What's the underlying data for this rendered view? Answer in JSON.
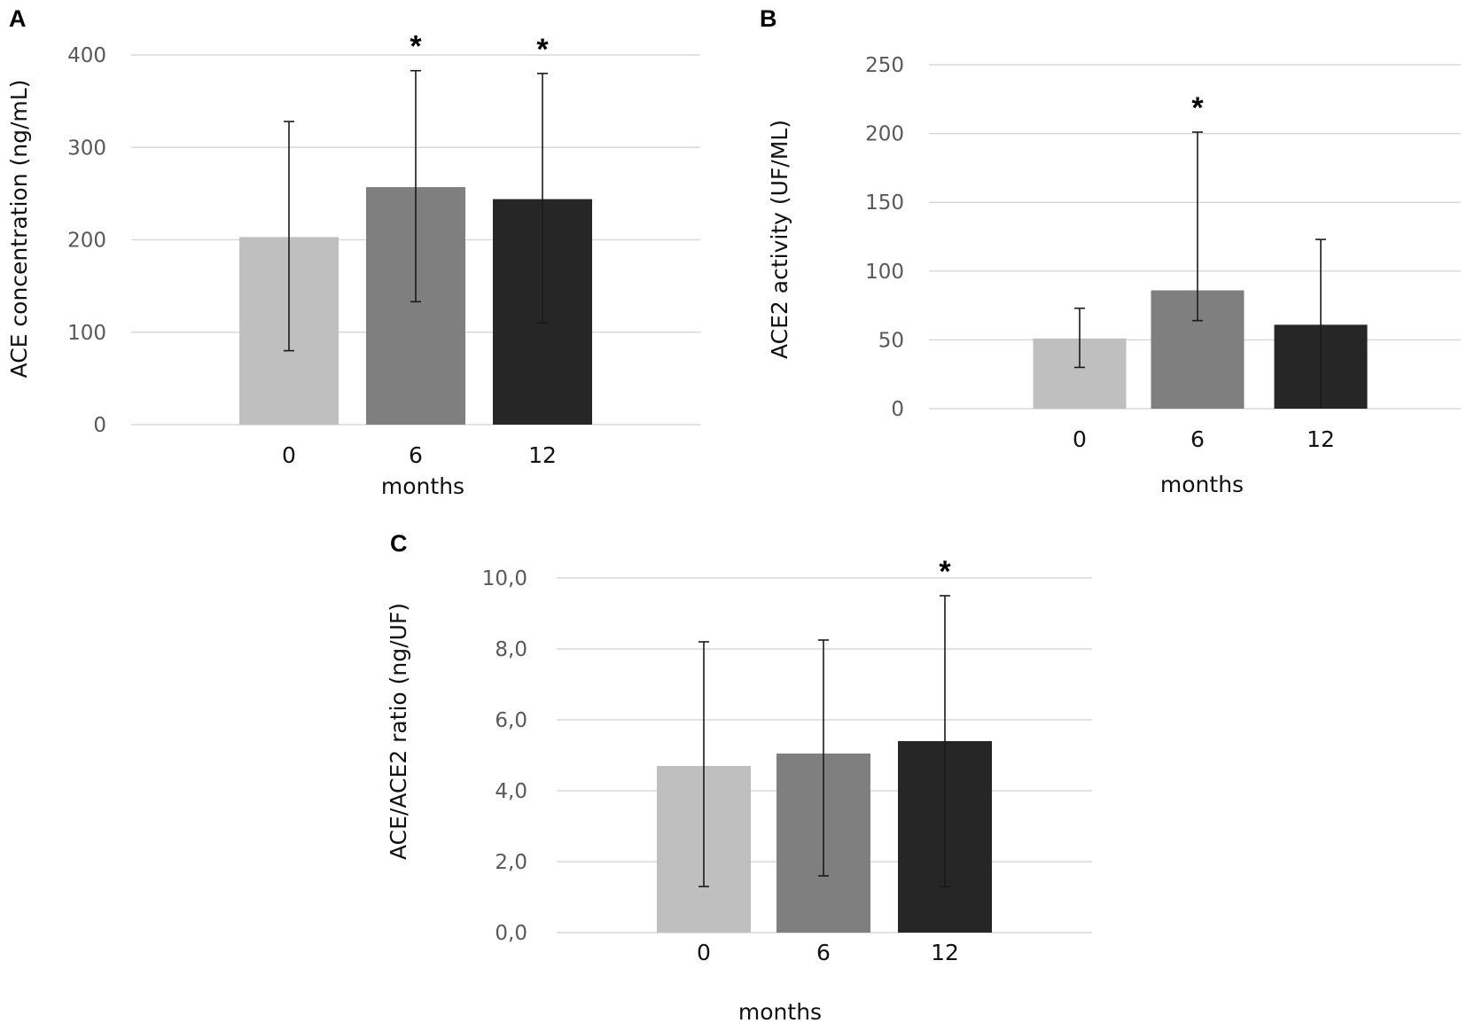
{
  "colors": {
    "bar_0": "#bfbfbf",
    "bar_6": "#7f7f7f",
    "bar_12": "#262626",
    "gridline": "#d9d9d9",
    "tick_text": "#595959"
  },
  "chart_data": [
    {
      "panel": "A",
      "type": "bar",
      "categories": [
        "0",
        "6",
        "12"
      ],
      "values": [
        203,
        257,
        244
      ],
      "error_upper": [
        328,
        383,
        380
      ],
      "error_lower": [
        80,
        133,
        110
      ],
      "significance": [
        "",
        "*",
        "*"
      ],
      "ylim": [
        0,
        400
      ],
      "yticks": [
        "0",
        "100",
        "200",
        "300",
        "400"
      ],
      "ylabel": "ACE concentration (ng/mL)",
      "xlabel": "months",
      "grid": true
    },
    {
      "panel": "B",
      "type": "bar",
      "categories": [
        "0",
        "6",
        "12"
      ],
      "values": [
        51,
        86,
        61
      ],
      "error_upper": [
        73,
        201,
        123
      ],
      "error_lower": [
        30,
        64,
        0
      ],
      "significance": [
        "",
        "*",
        ""
      ],
      "ylim": [
        0,
        250
      ],
      "yticks": [
        "0",
        "50",
        "100",
        "150",
        "200",
        "250"
      ],
      "ylabel": "ACE2 activity (UF/ML)",
      "xlabel": "months",
      "grid": true
    },
    {
      "panel": "C",
      "type": "bar",
      "categories": [
        "0",
        "6",
        "12"
      ],
      "values": [
        4.7,
        5.05,
        5.4
      ],
      "error_upper": [
        8.2,
        8.25,
        9.5
      ],
      "error_lower": [
        1.3,
        1.6,
        1.3
      ],
      "significance": [
        "",
        "",
        "*"
      ],
      "ylim": [
        0,
        10
      ],
      "yticks": [
        "0,0",
        "2,0",
        "4,0",
        "6,0",
        "8,0",
        "10,0"
      ],
      "ylabel": "ACE/ACE2 ratio (ng/UF)",
      "xlabel": "months",
      "grid": true
    }
  ]
}
